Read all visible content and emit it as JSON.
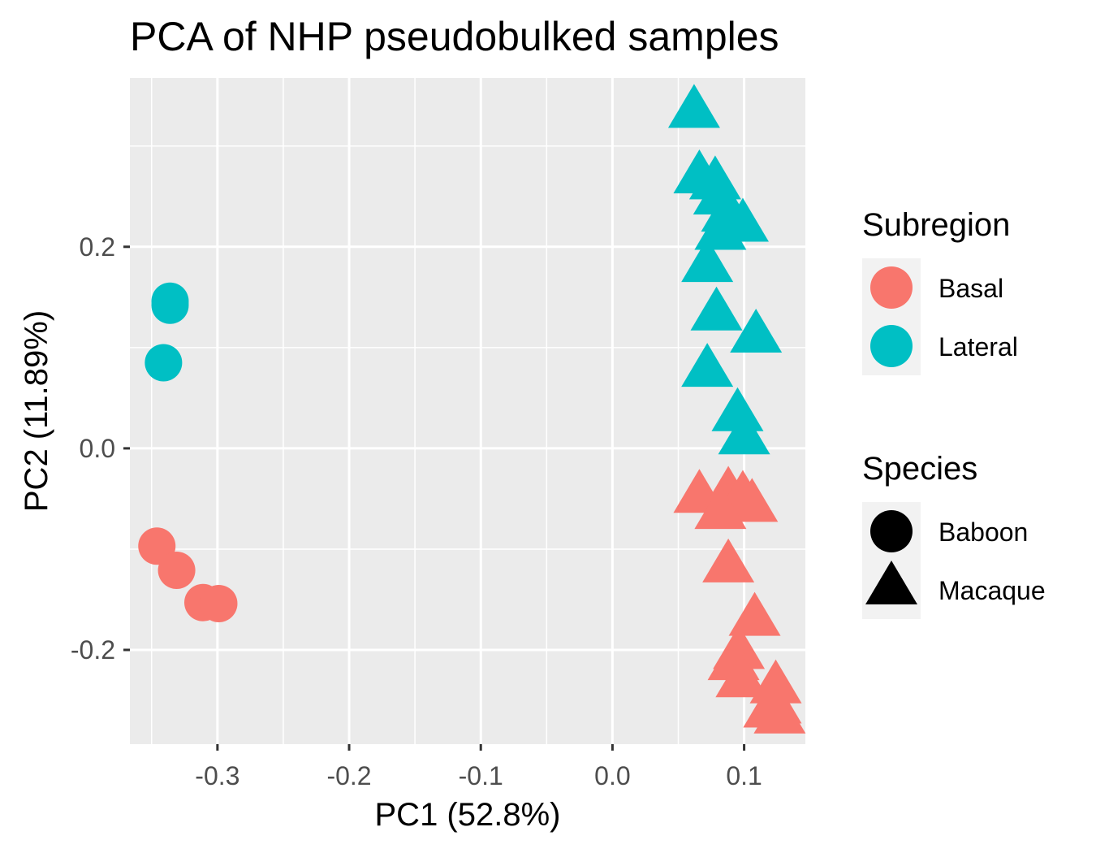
{
  "chart_data": {
    "type": "scatter",
    "title": "PCA of NHP pseudobulked samples",
    "xlabel": "PC1 (52.8%)",
    "ylabel": "PC2 (11.89%)",
    "xlim": [
      -0.3665,
      0.1465
    ],
    "ylim": [
      -0.2935,
      0.3675
    ],
    "x_ticks": [
      -0.3,
      -0.2,
      -0.1,
      0.0,
      0.1
    ],
    "x_tick_labels": [
      "-0.3",
      "-0.2",
      "-0.1",
      "0.0",
      "0.1"
    ],
    "y_ticks": [
      -0.2,
      0.0,
      0.2
    ],
    "y_tick_labels": [
      "-0.2",
      "0.0",
      "0.2"
    ],
    "grid": true,
    "panel_background": "#ebebeb",
    "legend_position": "right",
    "legends": [
      {
        "title": "Subregion",
        "kind": "color",
        "entries": [
          {
            "label": "Basal",
            "color": "#f8766d"
          },
          {
            "label": "Lateral",
            "color": "#00bfc4"
          }
        ]
      },
      {
        "title": "Species",
        "kind": "shape",
        "entries": [
          {
            "label": "Baboon",
            "shape": "circle"
          },
          {
            "label": "Macaque",
            "shape": "triangle"
          }
        ]
      }
    ],
    "series": [
      {
        "subregion": "Lateral",
        "species": "Baboon",
        "points": [
          {
            "x": -0.336,
            "y": 0.146
          },
          {
            "x": -0.336,
            "y": 0.142
          },
          {
            "x": -0.341,
            "y": 0.085
          }
        ]
      },
      {
        "subregion": "Basal",
        "species": "Baboon",
        "points": [
          {
            "x": -0.346,
            "y": -0.097
          },
          {
            "x": -0.331,
            "y": -0.121
          },
          {
            "x": -0.311,
            "y": -0.153
          },
          {
            "x": -0.299,
            "y": -0.154
          }
        ]
      },
      {
        "subregion": "Lateral",
        "species": "Macaque",
        "points": [
          {
            "x": 0.062,
            "y": 0.339
          },
          {
            "x": 0.066,
            "y": 0.274
          },
          {
            "x": 0.078,
            "y": 0.268
          },
          {
            "x": 0.081,
            "y": 0.253
          },
          {
            "x": 0.087,
            "y": 0.236
          },
          {
            "x": 0.099,
            "y": 0.226
          },
          {
            "x": 0.082,
            "y": 0.218
          },
          {
            "x": 0.072,
            "y": 0.186
          },
          {
            "x": 0.079,
            "y": 0.138
          },
          {
            "x": 0.109,
            "y": 0.116
          },
          {
            "x": 0.072,
            "y": 0.082
          },
          {
            "x": 0.095,
            "y": 0.038
          },
          {
            "x": 0.1,
            "y": 0.015
          }
        ]
      },
      {
        "subregion": "Basal",
        "species": "Macaque",
        "points": [
          {
            "x": 0.066,
            "y": -0.043
          },
          {
            "x": 0.088,
            "y": -0.04
          },
          {
            "x": 0.099,
            "y": -0.044
          },
          {
            "x": 0.106,
            "y": -0.052
          },
          {
            "x": 0.082,
            "y": -0.059
          },
          {
            "x": 0.088,
            "y": -0.112
          },
          {
            "x": 0.108,
            "y": -0.165
          },
          {
            "x": 0.096,
            "y": -0.198
          },
          {
            "x": 0.092,
            "y": -0.209
          },
          {
            "x": 0.098,
            "y": -0.226
          },
          {
            "x": 0.124,
            "y": -0.232
          },
          {
            "x": 0.124,
            "y": -0.252
          },
          {
            "x": 0.119,
            "y": -0.256
          },
          {
            "x": 0.127,
            "y": -0.262
          }
        ]
      }
    ]
  }
}
